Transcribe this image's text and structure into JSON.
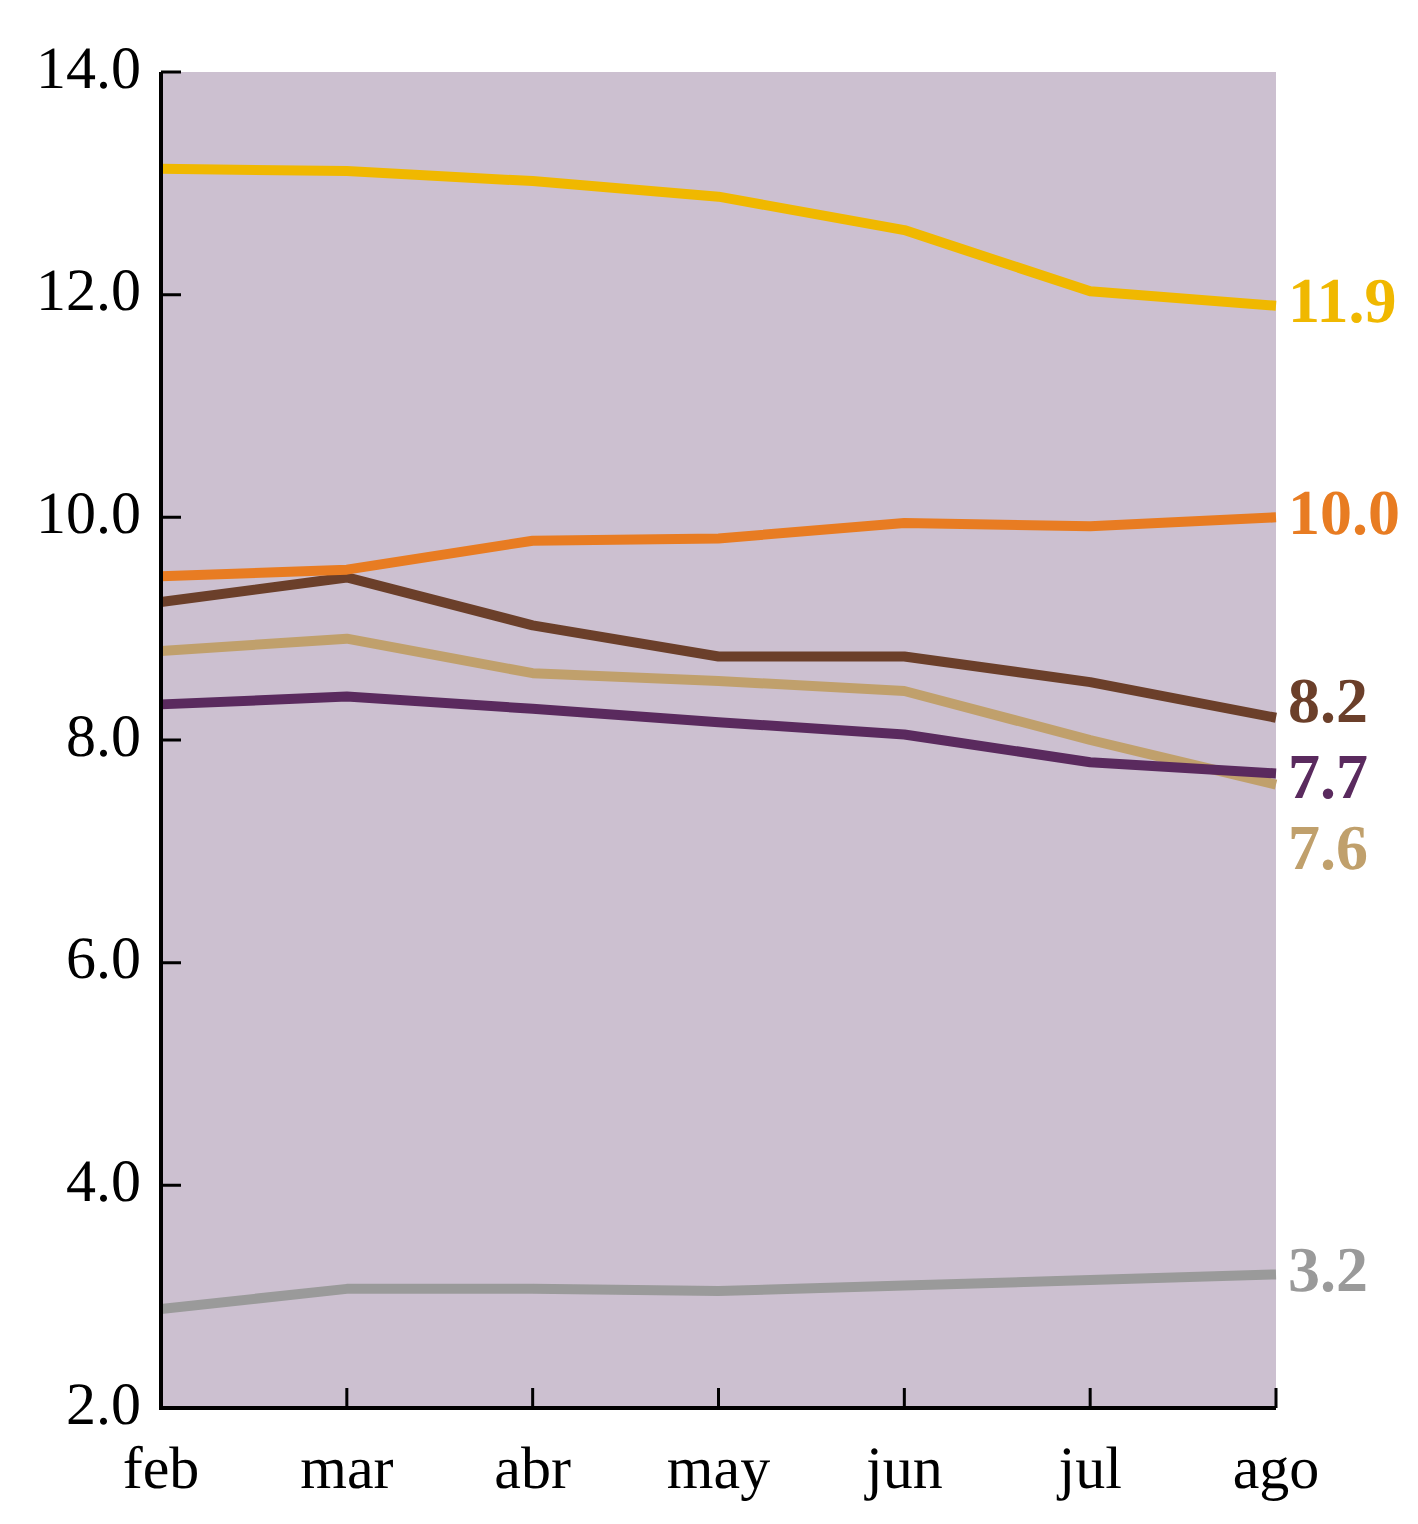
{
  "chart_data": {
    "type": "line",
    "categories": [
      "feb",
      "mar",
      "abr",
      "may",
      "jun",
      "jul",
      "ago"
    ],
    "series": [
      {
        "color": "#f0b800",
        "values": [
          13.13,
          13.11,
          13.02,
          12.88,
          12.58,
          12.03,
          11.9
        ],
        "value_labels": [
          null,
          null,
          null,
          null,
          null,
          null,
          "11.9"
        ]
      },
      {
        "color": "#e87c22",
        "values": [
          9.47,
          9.53,
          9.79,
          9.81,
          9.95,
          9.92,
          10.0
        ],
        "value_labels": [
          null,
          null,
          null,
          null,
          null,
          null,
          "10.0"
        ]
      },
      {
        "color": "#6b3f2a",
        "values": [
          9.24,
          9.46,
          9.03,
          8.75,
          8.75,
          8.52,
          8.2
        ],
        "value_labels": [
          null,
          null,
          null,
          null,
          null,
          null,
          "8.2"
        ]
      },
      {
        "color": "#5a2a5e",
        "values": [
          8.32,
          8.39,
          8.28,
          8.16,
          8.05,
          7.8,
          7.7
        ],
        "value_labels": [
          null,
          null,
          null,
          null,
          null,
          null,
          "7.7"
        ]
      },
      {
        "color": "#c0a06c",
        "values": [
          8.8,
          8.91,
          8.6,
          8.53,
          8.44,
          8.0,
          7.6
        ],
        "value_labels": [
          null,
          null,
          null,
          null,
          null,
          null,
          "7.6"
        ]
      },
      {
        "color": "#9a9a9a",
        "values": [
          2.89,
          3.07,
          3.07,
          3.05,
          3.1,
          3.15,
          3.2
        ],
        "value_labels": [
          null,
          null,
          null,
          null,
          null,
          null,
          "3.2"
        ]
      }
    ],
    "ylim": [
      2,
      14
    ],
    "yticks": [
      {
        "value": 2,
        "label": "2.0"
      },
      {
        "value": 4,
        "label": "4.0"
      },
      {
        "value": 6,
        "label": "6.0"
      },
      {
        "value": 8,
        "label": "8.0"
      },
      {
        "value": 10,
        "label": "10.0"
      },
      {
        "value": 12,
        "label": "12.0"
      },
      {
        "value": 14,
        "label": "14.0"
      }
    ],
    "grid": false,
    "legend": false,
    "marker": "none",
    "line_style": "solid"
  }
}
